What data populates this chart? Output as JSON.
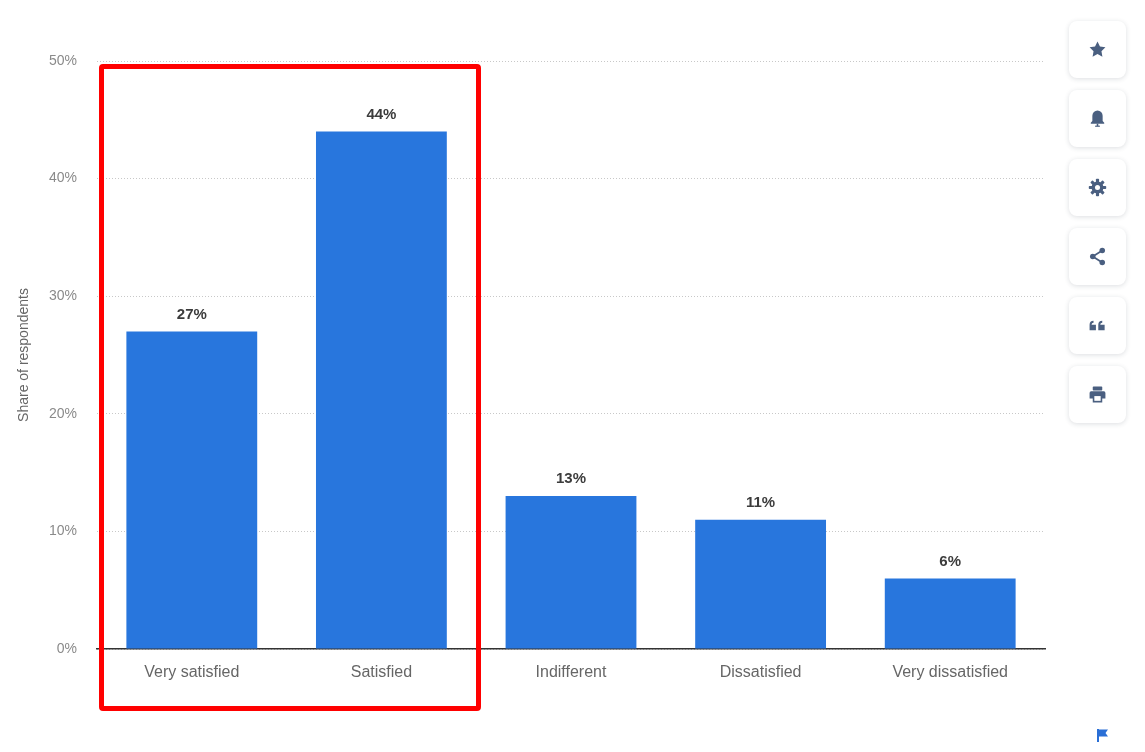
{
  "chart_data": {
    "type": "bar",
    "ylabel": "Share of respondents",
    "categories": [
      "Very satisfied",
      "Satisfied",
      "Indifferent",
      "Dissatisfied",
      "Very dissatisfied"
    ],
    "values": [
      27,
      44,
      13,
      11,
      6
    ],
    "color": "#2876dd",
    "value_labels": [
      "27%",
      "44%",
      "13%",
      "11%",
      "6%"
    ],
    "ylim": [
      0,
      50
    ],
    "yticks": [
      {
        "value": 0,
        "label": "0%"
      },
      {
        "value": 10,
        "label": "10%"
      },
      {
        "value": 20,
        "label": "20%"
      },
      {
        "value": 30,
        "label": "30%"
      },
      {
        "value": 40,
        "label": "40%"
      },
      {
        "value": 50,
        "label": "50%"
      }
    ],
    "grid": "y"
  }
}
